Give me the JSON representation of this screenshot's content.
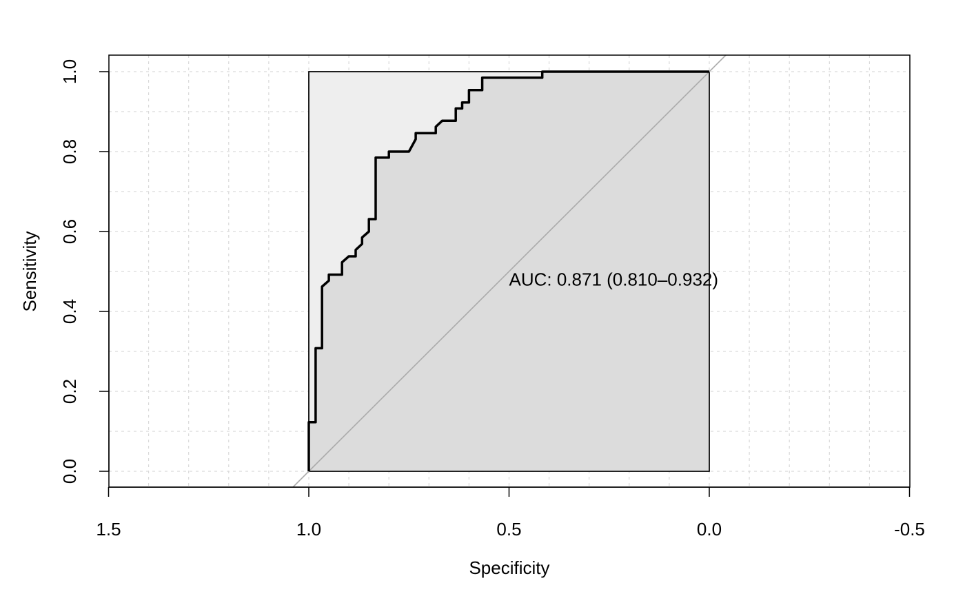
{
  "chart_data": {
    "type": "line",
    "title": "",
    "xlabel": "Specificity",
    "ylabel": "Sensitivity",
    "xlim": [
      1.5,
      -0.5
    ],
    "ylim": [
      0.0,
      1.0
    ],
    "x_reversed": true,
    "x_ticks": [
      1.5,
      1.0,
      0.5,
      0.0,
      -0.5
    ],
    "x_tick_labels": [
      "1.5",
      "1.0",
      "0.5",
      "0.0",
      "-0.5"
    ],
    "y_ticks": [
      0.0,
      0.2,
      0.4,
      0.6,
      0.8,
      1.0
    ],
    "y_tick_labels": [
      "0.0",
      "0.2",
      "0.4",
      "0.6",
      "0.8",
      "1.0"
    ],
    "grid": true,
    "legend": "none",
    "annotation": "AUC: 0.871 (0.810–0.932)",
    "auc": 0.871,
    "auc_ci": [
      0.81,
      0.932
    ],
    "colors": {
      "curve": "#000000",
      "diagonal": "#aaaaaa",
      "auc_fill": "#dcdcdc",
      "upper_fill": "#eeeeee",
      "grid": "#d9d9d9"
    },
    "series": [
      {
        "specificity": [
          1.0,
          1.0,
          0.983,
          0.983,
          0.967,
          0.967,
          0.95,
          0.95,
          0.917,
          0.917,
          0.9,
          0.883,
          0.883,
          0.867,
          0.867,
          0.85,
          0.85,
          0.833,
          0.833,
          0.8,
          0.8,
          0.75,
          0.733,
          0.733,
          0.683,
          0.683,
          0.667,
          0.633,
          0.633,
          0.617,
          0.617,
          0.6,
          0.6,
          0.567,
          0.567,
          0.417,
          0.417,
          0.0
        ],
        "sensitivity": [
          0.0,
          0.123,
          0.123,
          0.308,
          0.308,
          0.462,
          0.477,
          0.492,
          0.492,
          0.523,
          0.538,
          0.538,
          0.554,
          0.569,
          0.585,
          0.6,
          0.631,
          0.631,
          0.785,
          0.785,
          0.8,
          0.8,
          0.831,
          0.846,
          0.846,
          0.862,
          0.877,
          0.877,
          0.908,
          0.908,
          0.923,
          0.923,
          0.954,
          0.954,
          0.985,
          0.985,
          1.0,
          1.0
        ]
      }
    ]
  }
}
